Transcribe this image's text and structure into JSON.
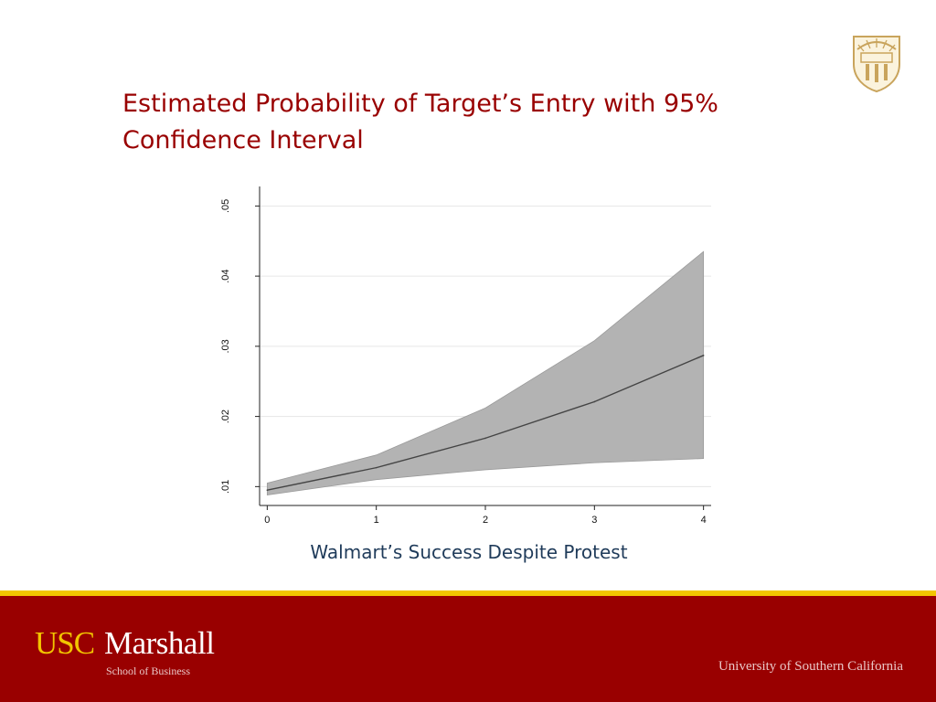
{
  "slide": {
    "title": "Estimated Probability of Target’s Entry with 95% Confidence Interval"
  },
  "footer": {
    "logo_usc": "USC",
    "logo_marshall": "Marshall",
    "logo_subtitle": "School of Business",
    "university": "University of Southern California"
  },
  "colors": {
    "title": "#990000",
    "footer_band": "#990000",
    "footer_stripe": "#f2c500",
    "ci_band": "#b3b3b3",
    "line": "#444444",
    "xlabel": "#1f3b5a"
  },
  "chart_data": {
    "type": "area",
    "title": "",
    "xlabel": "Walmart’s Success Despite Protest",
    "ylabel": "",
    "x": [
      0,
      1,
      2,
      3,
      4
    ],
    "xticks": [
      "0",
      "1",
      "2",
      "3",
      "4"
    ],
    "yticks": [
      ".01",
      ".02",
      ".03",
      ".04",
      ".05"
    ],
    "ytick_values": [
      0.01,
      0.02,
      0.03,
      0.04,
      0.05
    ],
    "ylim": [
      0.0077,
      0.052
    ],
    "xlim": [
      -0.07,
      4.07
    ],
    "grid": true,
    "series": [
      {
        "role": "estimate",
        "values": [
          0.0095,
          0.0127,
          0.0169,
          0.0221,
          0.0287
        ]
      },
      {
        "role": "ci_lower",
        "values": [
          0.0088,
          0.011,
          0.0124,
          0.0134,
          0.014
        ]
      },
      {
        "role": "ci_upper",
        "values": [
          0.0105,
          0.0145,
          0.0212,
          0.0308,
          0.0435
        ]
      }
    ]
  }
}
